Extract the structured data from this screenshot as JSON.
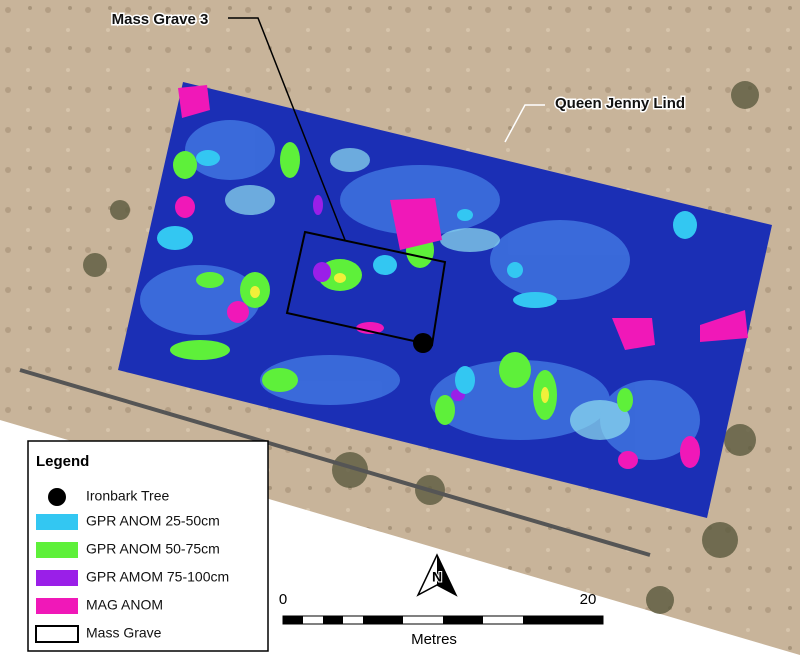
{
  "map": {
    "labels": {
      "site": "Mass Grave 3",
      "landmark": "Queen Jenny Lind"
    },
    "legend": {
      "title": "Legend",
      "items": [
        "Ironbark Tree",
        "GPR ANOM 25-50cm",
        "GPR ANOM 50-75cm",
        "GPR AMOM 75-100cm",
        "MAG ANOM",
        "Mass Grave"
      ]
    },
    "north_arrow": "N",
    "scale_bar": {
      "start": 0,
      "end": 20,
      "unit": "Metres"
    }
  }
}
